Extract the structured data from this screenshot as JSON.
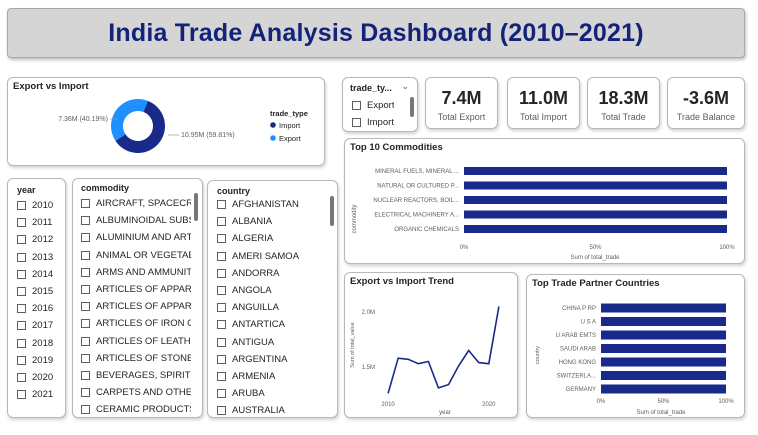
{
  "title": "India Trade Analysis Dashboard (2010–2021)",
  "colors": {
    "navy": "#1a2a8a",
    "light_blue": "#1e90ff",
    "title_bg": "#d5d5d5"
  },
  "export_vs_import": {
    "title": "Export vs Import",
    "legend_title": "trade_type",
    "legend": [
      {
        "label": "Import",
        "color": "#1a2a8a"
      },
      {
        "label": "Export",
        "color": "#1e90ff"
      }
    ],
    "label_export": "7.36M (40.19%)",
    "label_import": "10.95M (59.81%)"
  },
  "trade_type_slicer": {
    "title": "trade_ty...",
    "options": [
      "Export",
      "Import"
    ]
  },
  "kpis": [
    {
      "value": "7.4M",
      "label": "Total Export"
    },
    {
      "value": "11.0M",
      "label": "Total Import"
    },
    {
      "value": "18.3M",
      "label": "Total Trade"
    },
    {
      "value": "-3.6M",
      "label": "Trade Balance"
    }
  ],
  "year_slicer": {
    "title": "year",
    "items": [
      "2010",
      "2011",
      "2012",
      "2013",
      "2014",
      "2015",
      "2016",
      "2017",
      "2018",
      "2019",
      "2020",
      "2021"
    ]
  },
  "commodity_slicer": {
    "title": "commodity",
    "items": [
      "AIRCRAFT, SPACECRAF...",
      "ALBUMINOIDAL SUBS...",
      "ALUMINIUM AND ART...",
      "ANIMAL OR VEGETABL...",
      "ARMS AND AMMUNIT...",
      "ARTICLES OF APPAREL ...",
      "ARTICLES OF APPAREL ...",
      "ARTICLES OF IRON OR...",
      "ARTICLES OF LEATHER,...",
      "ARTICLES OF STONE, P...",
      "BEVERAGES, SPIRITS A...",
      "CARPETS AND OTHER ...",
      "CERAMIC PRODUCTS."
    ]
  },
  "country_slicer": {
    "title": "country",
    "items": [
      "AFGHANISTAN",
      "ALBANIA",
      "ALGERIA",
      "AMERI SAMOA",
      "ANDORRA",
      "ANGOLA",
      "ANGUILLA",
      "ANTARTICA",
      "ANTIGUA",
      "ARGENTINA",
      "ARMENIA",
      "ARUBA",
      "AUSTRALIA"
    ]
  },
  "chart_data": [
    {
      "type": "pie",
      "title": "Export vs Import",
      "categories": [
        "Import",
        "Export"
      ],
      "values": [
        10.95,
        7.36
      ],
      "unit": "M",
      "donut": true
    },
    {
      "type": "bar",
      "orientation": "horizontal",
      "title": "Top 10 Commodities",
      "ylabel": "commodity",
      "xlabel": "Sum of total_trade",
      "categories": [
        "MINERAL FUELS, MINERAL ...",
        "NATURAL OR CULTURED P...",
        "NUCLEAR REACTORS, BOIL...",
        "ELECTRICAL MACHINERY A...",
        "ORGANIC CHEMICALS"
      ],
      "values": [
        100,
        100,
        100,
        100,
        100
      ],
      "xticks": [
        "0%",
        "50%",
        "100%"
      ],
      "xlim": [
        0,
        100
      ]
    },
    {
      "type": "line",
      "title": "Export vs Import Trend",
      "xlabel": "year",
      "ylabel": "Sum of total_value",
      "x": [
        2010,
        2011,
        2012,
        2013,
        2014,
        2015,
        2016,
        2017,
        2018,
        2019,
        2020,
        2021
      ],
      "values": [
        1.26,
        1.58,
        1.57,
        1.53,
        1.55,
        1.31,
        1.34,
        1.51,
        1.65,
        1.54,
        1.53,
        2.05
      ],
      "xticks": [
        "2010",
        "2020"
      ],
      "yticks": [
        "1.5M",
        "2.0M"
      ],
      "ylim": [
        1.2,
        2.1
      ],
      "xlim": [
        2008.8,
        2022.4
      ]
    },
    {
      "type": "bar",
      "orientation": "horizontal",
      "title": "Top Trade Partner Countries",
      "ylabel": "country",
      "xlabel": "Sum of total_trade",
      "categories": [
        "CHINA P RP",
        "U S A",
        "U ARAB EMTS",
        "SAUDI ARAB",
        "HONG KONG",
        "SWITZERLA...",
        "GERMANY"
      ],
      "values": [
        100,
        100,
        100,
        100,
        100,
        100,
        100
      ],
      "xticks": [
        "0%",
        "50%",
        "100%"
      ],
      "xlim": [
        0,
        100
      ]
    }
  ]
}
